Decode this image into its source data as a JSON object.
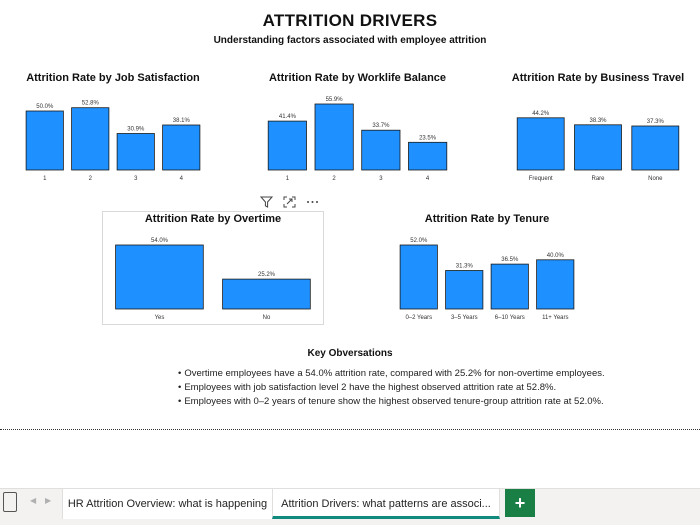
{
  "header": {
    "title": "ATTRITION DRIVERS",
    "subtitle": "Understanding factors associated with employee attrition"
  },
  "chart_data": [
    {
      "id": "job",
      "type": "bar",
      "title": "Attrition Rate by Job Satisfaction",
      "categories": [
        "1",
        "2",
        "3",
        "4"
      ],
      "values": [
        50.0,
        52.8,
        30.9,
        38.1
      ],
      "value_labels": [
        "50.0%",
        "52.8%",
        "30.9%",
        "38.1%"
      ],
      "ylim": [
        0,
        55.9
      ],
      "bar_color": "#1e90ff"
    },
    {
      "id": "wlb",
      "type": "bar",
      "title": "Attrition Rate by Worklife Balance",
      "categories": [
        "1",
        "2",
        "3",
        "4"
      ],
      "values": [
        41.4,
        55.9,
        33.7,
        23.5
      ],
      "value_labels": [
        "41.4%",
        "55.9%",
        "33.7%",
        "23.5%"
      ],
      "ylim": [
        0,
        55.9
      ],
      "bar_color": "#1e90ff"
    },
    {
      "id": "travel",
      "type": "bar",
      "title": "Attrition Rate by Business Travel",
      "categories": [
        "Frequent",
        "Rare",
        "None"
      ],
      "values": [
        44.2,
        38.3,
        37.3
      ],
      "value_labels": [
        "44.2%",
        "38.3%",
        "37.3%"
      ],
      "ylim": [
        0,
        55.9
      ],
      "bar_color": "#1e90ff"
    },
    {
      "id": "overtime",
      "type": "bar",
      "title": "Attrition Rate by Overtime",
      "categories": [
        "Yes",
        "No"
      ],
      "values": [
        54.0,
        25.2
      ],
      "value_labels": [
        "54.0%",
        "25.2%"
      ],
      "ylim": [
        0,
        54.0
      ],
      "bar_color": "#1e90ff"
    },
    {
      "id": "tenure",
      "type": "bar",
      "title": "Attrition Rate by Tenure",
      "categories": [
        "0–2 Years",
        "3–5 Years",
        "6–10 Years",
        "11+ Years"
      ],
      "values": [
        52.0,
        31.3,
        36.5,
        40.0
      ],
      "value_labels": [
        "52.0%",
        "31.3%",
        "36.5%",
        "40.0%"
      ],
      "ylim": [
        0,
        52.0
      ],
      "bar_color": "#1e90ff"
    }
  ],
  "observations": {
    "title": "Key Obversations",
    "items": [
      "Overtime employees have a 54.0% attrition rate, compared with 25.2% for non-overtime employees.",
      "Employees with job satisfaction level 2 have the highest observed attrition rate at 52.8%.",
      "Employees with 0–2 years of tenure show the highest observed tenure-group attrition rate at 52.0%."
    ]
  },
  "visual_toolbar": {
    "icons": [
      "filter-icon",
      "focus-mode-icon",
      "more-options-icon"
    ]
  },
  "tabs": {
    "items": [
      {
        "label": "HR Attrition Overview: what is happening"
      },
      {
        "label": "Attrition Drivers: what patterns are associ..."
      }
    ],
    "active_index": 1,
    "add_label": "+"
  }
}
